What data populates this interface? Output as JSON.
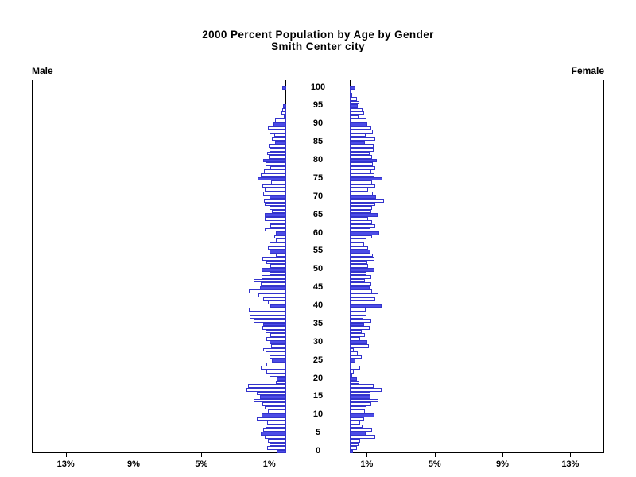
{
  "title": {
    "line1": "2000 Percent Population by Age by Gender",
    "line2": "Smith Center city"
  },
  "panels": {
    "male_label": "Male",
    "female_label": "Female"
  },
  "axis": {
    "pct_ticks": [
      1,
      5,
      9,
      13
    ],
    "pct_tick_labels": [
      "1%",
      "5%",
      "9%",
      "13%"
    ],
    "age_ticks": [
      0,
      5,
      10,
      15,
      20,
      25,
      30,
      35,
      40,
      45,
      50,
      55,
      60,
      65,
      70,
      75,
      80,
      85,
      90,
      95,
      100
    ],
    "pct_max": 15
  },
  "colors": {
    "bar_fill": "#4C4CE6",
    "bar_outline": "#3434CC",
    "axis": "#000000"
  },
  "chart_data": {
    "type": "bar",
    "subtype": "population-pyramid",
    "title": "2000 Percent Population by Age by Gender",
    "subtitle": "Smith Center city",
    "orientation": "horizontal",
    "age_min": 0,
    "age_max": 100,
    "age_note": "values[i] is percent of total population at single year of age i; male plotted right-to-left, female left-to-right; bars at ages divisible by 5 are filled blue, others white with blue outline",
    "xlim": [
      0,
      15
    ],
    "units": "%",
    "grid": false,
    "legend": false,
    "series": [
      {
        "name": "Male",
        "values": [
          0.55,
          1.13,
          0.97,
          1.1,
          1.28,
          1.52,
          1.38,
          1.22,
          1.13,
          1.75,
          1.44,
          1.06,
          1.25,
          1.4,
          1.9,
          1.55,
          1.72,
          2.35,
          2.27,
          0.6,
          0.55,
          1.0,
          1.17,
          1.48,
          1.17,
          0.86,
          0.97,
          1.2,
          1.35,
          0.9,
          1.0,
          1.17,
          0.94,
          1.2,
          1.4,
          1.35,
          1.9,
          2.15,
          1.45,
          2.2,
          0.95,
          1.1,
          1.35,
          1.65,
          2.2,
          1.55,
          1.5,
          1.9,
          1.45,
          1.0,
          1.45,
          0.95,
          1.15,
          1.4,
          0.6,
          1.0,
          1.1,
          1.0,
          0.63,
          0.7,
          0.63,
          1.25,
          0.94,
          1.0,
          1.25,
          1.28,
          0.86,
          1.0,
          1.25,
          1.33,
          1.0,
          1.37,
          1.25,
          1.4,
          0.9,
          1.7,
          1.5,
          1.3,
          0.95,
          1.2,
          1.36,
          1.05,
          1.14,
          1.0,
          1.05,
          0.65,
          0.86,
          0.72,
          1.0,
          1.07,
          0.74,
          0.66,
          0.15,
          0.27,
          0.23,
          0.2,
          0,
          0,
          0,
          0,
          0.23
        ]
      },
      {
        "name": "Female",
        "values": [
          0.2,
          0.42,
          0.52,
          0.63,
          1.49,
          0.94,
          1.3,
          0.74,
          0.63,
          0.83,
          1.46,
          0.89,
          0.99,
          1.25,
          1.68,
          1.2,
          1.22,
          1.88,
          1.4,
          0.55,
          0.42,
          0.16,
          0.23,
          0.63,
          0.78,
          0.31,
          0.7,
          0.47,
          0.23,
          1.14,
          1.05,
          0.63,
          0.89,
          0.7,
          1.17,
          0.83,
          1.25,
          0.78,
          1.0,
          0.94,
          1.88,
          1.7,
          1.49,
          1.68,
          1.33,
          1.15,
          1.25,
          0.89,
          1.25,
          1.0,
          1.45,
          1.1,
          1.05,
          1.45,
          1.35,
          1.2,
          1.1,
          0.85,
          1.0,
          1.3,
          1.75,
          1.2,
          1.5,
          1.3,
          1.1,
          1.65,
          1.25,
          1.3,
          1.5,
          2.0,
          1.55,
          1.35,
          1.1,
          1.5,
          1.3,
          1.9,
          1.45,
          1.25,
          1.5,
          1.35,
          1.6,
          1.3,
          1.15,
          1.4,
          1.4,
          0.9,
          1.5,
          0.95,
          1.35,
          1.25,
          1.05,
          1.0,
          0.5,
          0.85,
          0.75,
          0.45,
          0.55,
          0.4,
          0.15,
          0.05,
          0.35
        ]
      }
    ]
  }
}
